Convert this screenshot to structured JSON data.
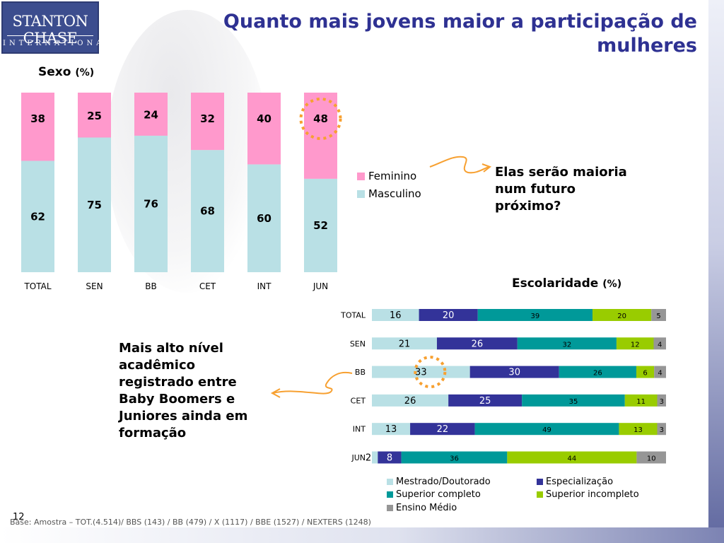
{
  "logo": {
    "name": "STANTON CHASE",
    "sub": "INTERNATIONAL"
  },
  "title": "Quanto mais jovens maior a participação de mulheres",
  "page_number": "12",
  "footnote": "Base: Amostra – TOT.(4.514)/ BBS (143) / BB (479) / X (1117) / BBE (1527) / NEXTERS (1248)",
  "callouts": {
    "right": "Elas serão maioria num futuro próximo?",
    "left": "Mais alto nível acadêmico registrado entre Baby Boomers e Juniores ainda em formação"
  },
  "colors": {
    "feminino": "#ff99cc",
    "masculino": "#b9e0e5",
    "mestrado": "#b9e0e5",
    "especializacao": "#333399",
    "superior_completo": "#009999",
    "superior_incompleto": "#99cc00",
    "ensino_medio": "#969696",
    "highlight": "#f7a030",
    "title": "#2e3192"
  },
  "chart_data": [
    {
      "type": "bar",
      "stacked": true,
      "orientation": "vertical",
      "title": "Sexo",
      "unit": "(%)",
      "categories": [
        "TOTAL",
        "SEN",
        "BB",
        "CET",
        "INT",
        "JUN"
      ],
      "series": [
        {
          "name": "Masculino",
          "values": [
            62,
            75,
            76,
            68,
            60,
            52
          ]
        },
        {
          "name": "Feminino",
          "values": [
            38,
            25,
            24,
            32,
            40,
            48
          ]
        }
      ],
      "ylim": [
        0,
        100
      ],
      "legend": [
        "Feminino",
        "Masculino"
      ],
      "legend_position": "right",
      "highlight": {
        "category": "JUN",
        "series": "Feminino"
      }
    },
    {
      "type": "bar",
      "stacked": true,
      "orientation": "horizontal",
      "title": "Escolaridade",
      "unit": "(%)",
      "categories": [
        "TOTAL",
        "SEN",
        "BB",
        "CET",
        "INT",
        "JUN"
      ],
      "series": [
        {
          "name": "Mestrado/Doutorado",
          "values": [
            16,
            21,
            33,
            26,
            13,
            2
          ]
        },
        {
          "name": "Especialização",
          "values": [
            20,
            26,
            30,
            25,
            22,
            8
          ]
        },
        {
          "name": "Superior completo",
          "values": [
            39,
            32,
            26,
            35,
            49,
            36
          ]
        },
        {
          "name": "Superior incompleto",
          "values": [
            20,
            12,
            6,
            11,
            13,
            44
          ]
        },
        {
          "name": "Ensino Médio",
          "values": [
            5,
            4,
            4,
            3,
            3,
            10
          ]
        }
      ],
      "legend_position": "bottom",
      "highlight": {
        "category": "BB",
        "series": "Mestrado/Doutorado"
      }
    }
  ]
}
